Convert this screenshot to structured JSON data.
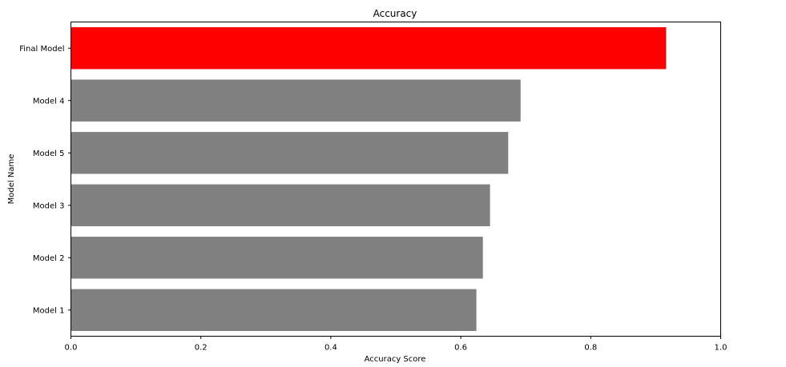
{
  "chart_data": {
    "type": "bar",
    "orientation": "horizontal",
    "title": "Accuracy",
    "xlabel": "Accuracy Score",
    "ylabel": "Model Name",
    "xlim": [
      0,
      1.0
    ],
    "xticks": [
      "0.0",
      "0.2",
      "0.4",
      "0.6",
      "0.8",
      "1.0"
    ],
    "categories": [
      "Model 1",
      "Model 2",
      "Model 3",
      "Model 5",
      "Model 4",
      "Final Model"
    ],
    "values": [
      0.624,
      0.634,
      0.645,
      0.673,
      0.692,
      0.916
    ],
    "colors": [
      "#808080",
      "#808080",
      "#808080",
      "#808080",
      "#808080",
      "#ff0000"
    ],
    "grid": false,
    "legend": false
  }
}
